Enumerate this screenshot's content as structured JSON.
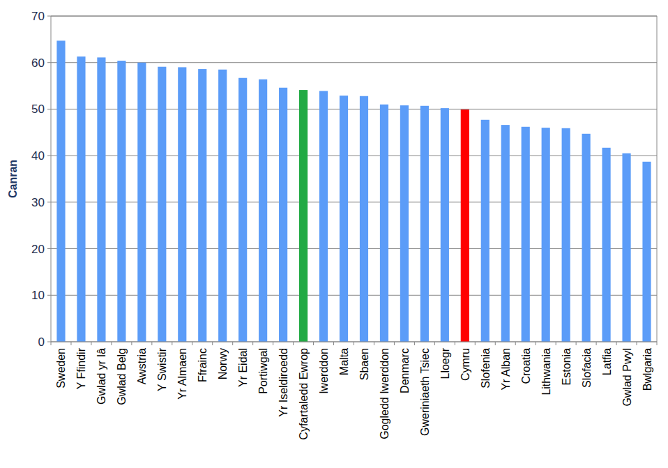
{
  "chart_data": {
    "type": "bar",
    "y_label": "Canran",
    "categories": [
      "Sweden",
      "Y Ffindir",
      "Gwlad yr Iâ",
      "Gwlad Belg",
      "Awstria",
      "Y Swistir",
      "Yr Almaen",
      "Ffrainc",
      "Norwy",
      "Yr Eidal",
      "Portiwgal",
      "Yr Iseldiroedd",
      "Cyfartaledd Ewrop",
      "Iwerddon",
      "Malta",
      "Sbaen",
      "Gogledd Iwerddon",
      "Denmarc",
      "Gweriniaeth Tsiec",
      "Lloegr",
      "Cymru",
      "Slofenia",
      "Yr Alban",
      "Croatia",
      "Lithwania",
      "Estonia",
      "Slofacia",
      "Latfia",
      "Gwlad Pwyl",
      "Bwlgaria"
    ],
    "values": [
      64.7,
      61.3,
      61.1,
      60.4,
      60.0,
      59.1,
      59.0,
      58.6,
      58.5,
      56.7,
      56.4,
      54.6,
      54.1,
      53.9,
      52.9,
      52.8,
      51.0,
      50.8,
      50.7,
      50.2,
      49.9,
      47.7,
      46.6,
      46.2,
      46.0,
      45.9,
      44.7,
      41.7,
      40.5,
      38.7
    ],
    "colors": [
      "#5b9cf8",
      "#5b9cf8",
      "#5b9cf8",
      "#5b9cf8",
      "#5b9cf8",
      "#5b9cf8",
      "#5b9cf8",
      "#5b9cf8",
      "#5b9cf8",
      "#5b9cf8",
      "#5b9cf8",
      "#5b9cf8",
      "#22aa44",
      "#5b9cf8",
      "#5b9cf8",
      "#5b9cf8",
      "#5b9cf8",
      "#5b9cf8",
      "#5b9cf8",
      "#5b9cf8",
      "#ff0000",
      "#5b9cf8",
      "#5b9cf8",
      "#5b9cf8",
      "#5b9cf8",
      "#5b9cf8",
      "#5b9cf8",
      "#5b9cf8",
      "#5b9cf8",
      "#5b9cf8"
    ],
    "ylim": [
      0,
      70
    ],
    "yticks": [
      0,
      10,
      20,
      30,
      40,
      50,
      60,
      70
    ],
    "grid": true
  }
}
